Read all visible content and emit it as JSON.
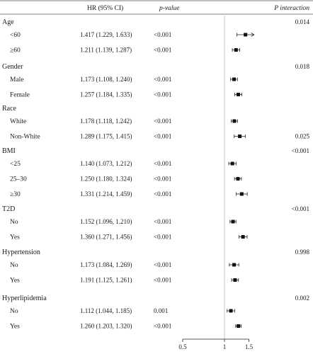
{
  "headers": {
    "hr": "HR (95% CI)",
    "pvalue": "p-value",
    "pinteraction": "P interaction"
  },
  "chart_data": {
    "type": "forest",
    "x_axis": {
      "scale": "log",
      "ticks": [
        0.5,
        1,
        1.5
      ],
      "tick_labels": [
        "0.5",
        "1",
        "1.5"
      ],
      "reference": 1,
      "range": [
        0.5,
        1.5
      ]
    },
    "groups": [
      {
        "name": "Age",
        "p_interaction": "0.014",
        "rows": [
          {
            "label": "<60",
            "ci_text": "1.417 (1.229, 1.633)",
            "p": "<0.001",
            "hr": 1.417,
            "lo": 1.229,
            "hi": 1.633,
            "truncated_hi": true
          },
          {
            "label": "≥60",
            "ci_text": "1.211 (1.139, 1.287)",
            "p": "<0.001",
            "hr": 1.211,
            "lo": 1.139,
            "hi": 1.287
          }
        ]
      },
      {
        "name": "Gender",
        "p_interaction": "0.018",
        "rows": [
          {
            "label": "Male",
            "ci_text": "1.173 (1.108, 1.240)",
            "p": "<0.001",
            "hr": 1.173,
            "lo": 1.108,
            "hi": 1.24
          },
          {
            "label": "Female",
            "ci_text": "1.257 (1.184, 1.335)",
            "p": "<0.001",
            "hr": 1.257,
            "lo": 1.184,
            "hi": 1.335
          }
        ]
      },
      {
        "name": "Race",
        "p_interaction": "0.025",
        "p_on_row": 1,
        "rows": [
          {
            "label": "White",
            "ci_text": "1.178 (1.118, 1.242)",
            "p": "<0.001",
            "hr": 1.178,
            "lo": 1.118,
            "hi": 1.242
          },
          {
            "label": "Non-White",
            "ci_text": "1.289 (1.175, 1.415)",
            "p": "<0.001",
            "hr": 1.289,
            "lo": 1.175,
            "hi": 1.415
          }
        ]
      },
      {
        "name": "BMI",
        "p_interaction": "<0.001",
        "rows": [
          {
            "label": "<25",
            "ci_text": "1.140 (1.073, 1.212)",
            "p": "<0.001",
            "hr": 1.14,
            "lo": 1.073,
            "hi": 1.212
          },
          {
            "label": "25–30",
            "ci_text": "1.250 (1.180, 1.324)",
            "p": "<0.001",
            "hr": 1.25,
            "lo": 1.18,
            "hi": 1.324
          },
          {
            "label": "≥30",
            "ci_text": "1.331 (1.214, 1.459)",
            "p": "<0.001",
            "hr": 1.331,
            "lo": 1.214,
            "hi": 1.459
          }
        ]
      },
      {
        "name": "T2D",
        "p_interaction": "<0.001",
        "rows": [
          {
            "label": "No",
            "ci_text": "1.152 (1.096, 1.210)",
            "p": "<0.001",
            "hr": 1.152,
            "lo": 1.096,
            "hi": 1.21
          },
          {
            "label": "Yes",
            "ci_text": "1.360 (1.271, 1.456)",
            "p": "<0.001",
            "hr": 1.36,
            "lo": 1.271,
            "hi": 1.456
          }
        ]
      },
      {
        "name": "Hypertension",
        "p_interaction": "0.998",
        "rows": [
          {
            "label": "No",
            "ci_text": "1.173 (1.084, 1.269)",
            "p": "<0.001",
            "hr": 1.173,
            "lo": 1.084,
            "hi": 1.269
          },
          {
            "label": "Yes",
            "ci_text": "1.191 (1.125, 1.261)",
            "p": "<0.001",
            "hr": 1.191,
            "lo": 1.125,
            "hi": 1.261
          }
        ]
      },
      {
        "name": "Hyperlipidemia",
        "p_interaction": "0.002",
        "rows": [
          {
            "label": "No",
            "ci_text": "1.112 (1.044, 1.185)",
            "p": "0.001",
            "hr": 1.112,
            "lo": 1.044,
            "hi": 1.185
          },
          {
            "label": "Yes",
            "ci_text": "1.260 (1.203, 1.320)",
            "p": "<0.001",
            "hr": 1.26,
            "lo": 1.203,
            "hi": 1.32
          }
        ]
      }
    ]
  }
}
